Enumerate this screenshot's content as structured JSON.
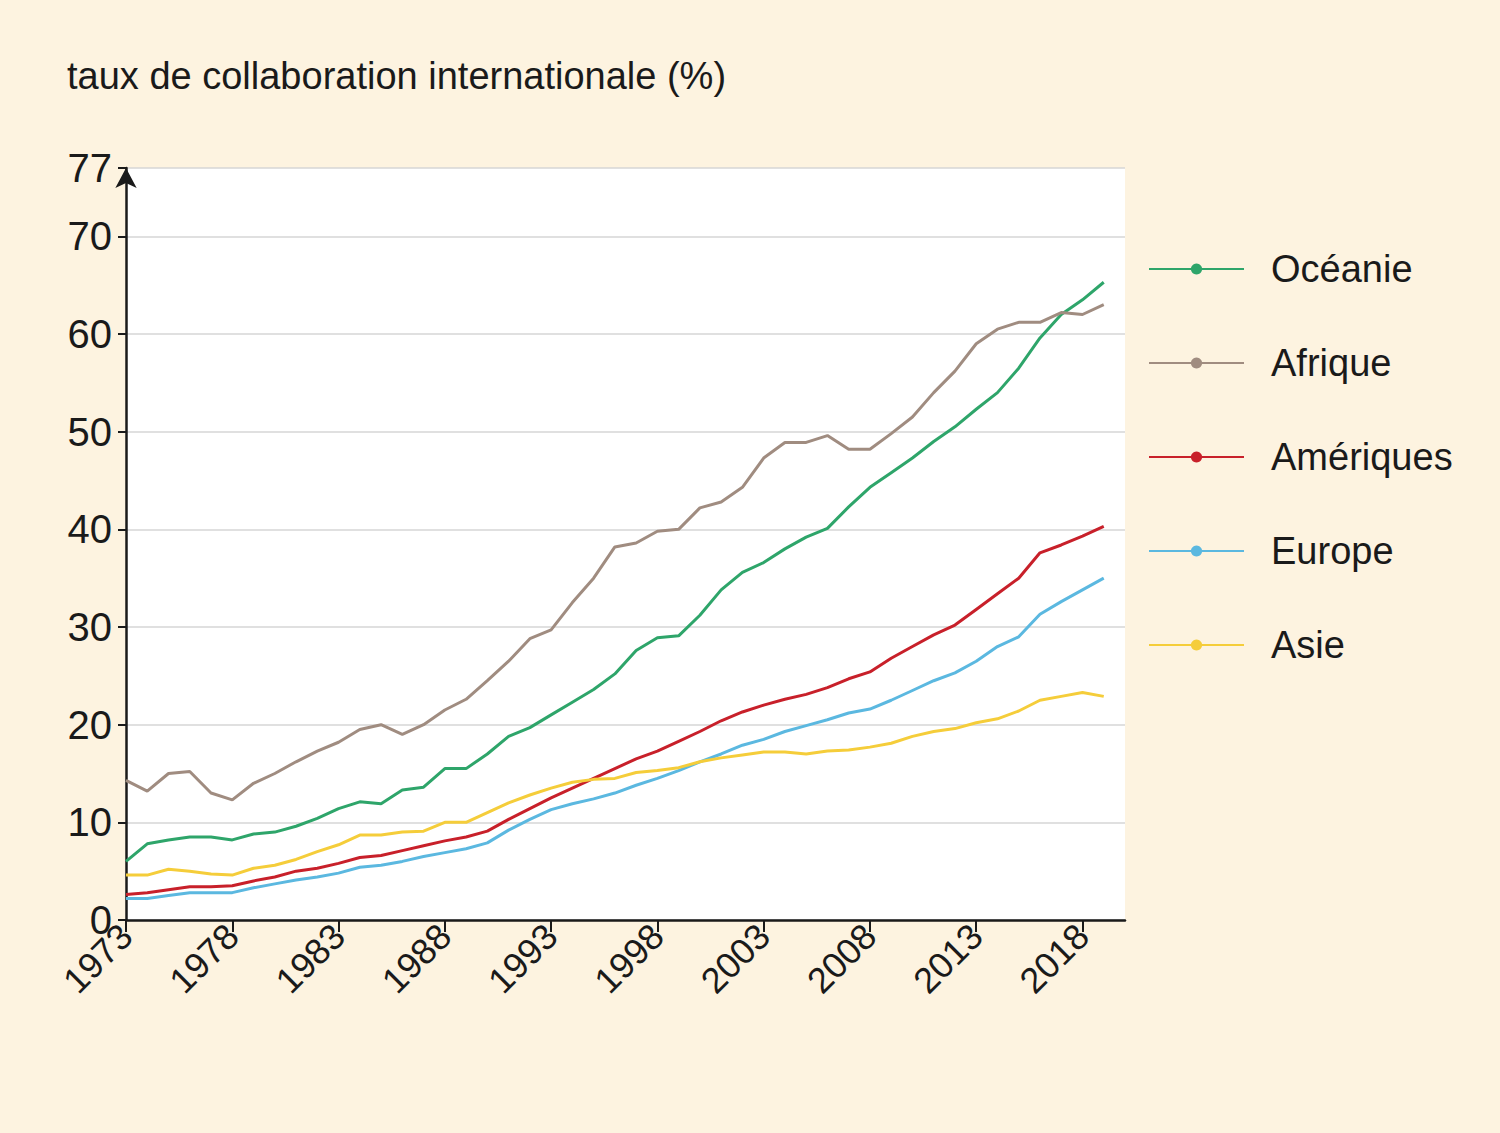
{
  "chart_data": {
    "type": "line",
    "title": "taux de collaboration internationale (%)",
    "x": [
      1973,
      1974,
      1975,
      1976,
      1977,
      1978,
      1979,
      1980,
      1981,
      1982,
      1983,
      1984,
      1985,
      1986,
      1987,
      1988,
      1989,
      1990,
      1991,
      1992,
      1993,
      1994,
      1995,
      1996,
      1997,
      1998,
      1999,
      2000,
      2001,
      2002,
      2003,
      2004,
      2005,
      2006,
      2007,
      2008,
      2009,
      2010,
      2011,
      2012,
      2013,
      2014,
      2015,
      2016,
      2017,
      2018,
      2019
    ],
    "xlim": [
      1973,
      2020
    ],
    "xticks": [
      1973,
      1978,
      1983,
      1988,
      1993,
      1998,
      2003,
      2008,
      2013,
      2018
    ],
    "ylim": [
      0,
      77
    ],
    "yticks": [
      0,
      10,
      20,
      30,
      40,
      50,
      60,
      70
    ],
    "grid": true,
    "legend": "right",
    "series": [
      {
        "name": "Océanie",
        "color": "#2ea56a",
        "values": [
          6.0,
          7.8,
          8.2,
          8.5,
          8.5,
          8.2,
          8.8,
          9.0,
          9.6,
          10.4,
          11.4,
          12.1,
          11.9,
          13.3,
          13.6,
          15.5,
          15.5,
          17.0,
          18.8,
          19.7,
          21.0,
          22.3,
          23.6,
          25.2,
          27.6,
          28.9,
          29.1,
          31.2,
          33.8,
          35.6,
          36.6,
          38.0,
          39.2,
          40.1,
          42.3,
          44.3,
          45.8,
          47.3,
          49.0,
          50.5,
          52.3,
          54.0,
          56.5,
          59.6,
          62.0,
          63.5,
          65.3
        ]
      },
      {
        "name": "Afrique",
        "color": "#a08c80",
        "values": [
          14.3,
          13.2,
          15.0,
          15.2,
          13.0,
          12.3,
          14.0,
          15.0,
          16.2,
          17.3,
          18.2,
          19.5,
          20.0,
          19.0,
          20.0,
          21.5,
          22.6,
          24.5,
          26.5,
          28.8,
          29.7,
          32.5,
          35.0,
          38.2,
          38.6,
          39.8,
          40.0,
          42.2,
          42.8,
          44.3,
          47.3,
          48.9,
          48.9,
          49.6,
          48.2,
          48.2,
          49.8,
          51.5,
          54.0,
          56.2,
          59.0,
          60.5,
          61.2,
          61.2,
          62.2,
          62.0,
          63.0
        ]
      },
      {
        "name": "Amériques",
        "color": "#c8202a",
        "values": [
          2.6,
          2.8,
          3.1,
          3.4,
          3.4,
          3.5,
          4.0,
          4.4,
          5.0,
          5.3,
          5.8,
          6.4,
          6.6,
          7.1,
          7.6,
          8.1,
          8.5,
          9.1,
          10.3,
          11.4,
          12.5,
          13.5,
          14.5,
          15.5,
          16.5,
          17.3,
          18.3,
          19.3,
          20.4,
          21.3,
          22.0,
          22.6,
          23.1,
          23.8,
          24.7,
          25.4,
          26.8,
          28.0,
          29.2,
          30.2,
          31.8,
          33.4,
          35.0,
          37.6,
          38.4,
          39.3,
          40.3
        ]
      },
      {
        "name": "Europe",
        "color": "#5bb8e0",
        "values": [
          2.2,
          2.2,
          2.5,
          2.8,
          2.8,
          2.8,
          3.3,
          3.7,
          4.1,
          4.4,
          4.8,
          5.4,
          5.6,
          6.0,
          6.5,
          6.9,
          7.3,
          7.9,
          9.2,
          10.3,
          11.3,
          11.9,
          12.4,
          13.0,
          13.8,
          14.5,
          15.3,
          16.2,
          17.0,
          17.9,
          18.5,
          19.3,
          19.9,
          20.5,
          21.2,
          21.6,
          22.5,
          23.5,
          24.5,
          25.3,
          26.5,
          28.0,
          29.0,
          31.3,
          32.6,
          33.8,
          35.0
        ]
      },
      {
        "name": "Asie",
        "color": "#f5cd3a",
        "values": [
          4.6,
          4.6,
          5.2,
          5.0,
          4.7,
          4.6,
          5.3,
          5.6,
          6.2,
          7.0,
          7.7,
          8.7,
          8.7,
          9.0,
          9.1,
          10.0,
          10.0,
          11.0,
          12.0,
          12.8,
          13.5,
          14.1,
          14.4,
          14.5,
          15.1,
          15.3,
          15.6,
          16.2,
          16.6,
          16.9,
          17.2,
          17.2,
          17.0,
          17.3,
          17.4,
          17.7,
          18.1,
          18.8,
          19.3,
          19.6,
          20.2,
          20.6,
          21.4,
          22.5,
          22.9,
          23.3,
          22.9
        ]
      }
    ]
  }
}
